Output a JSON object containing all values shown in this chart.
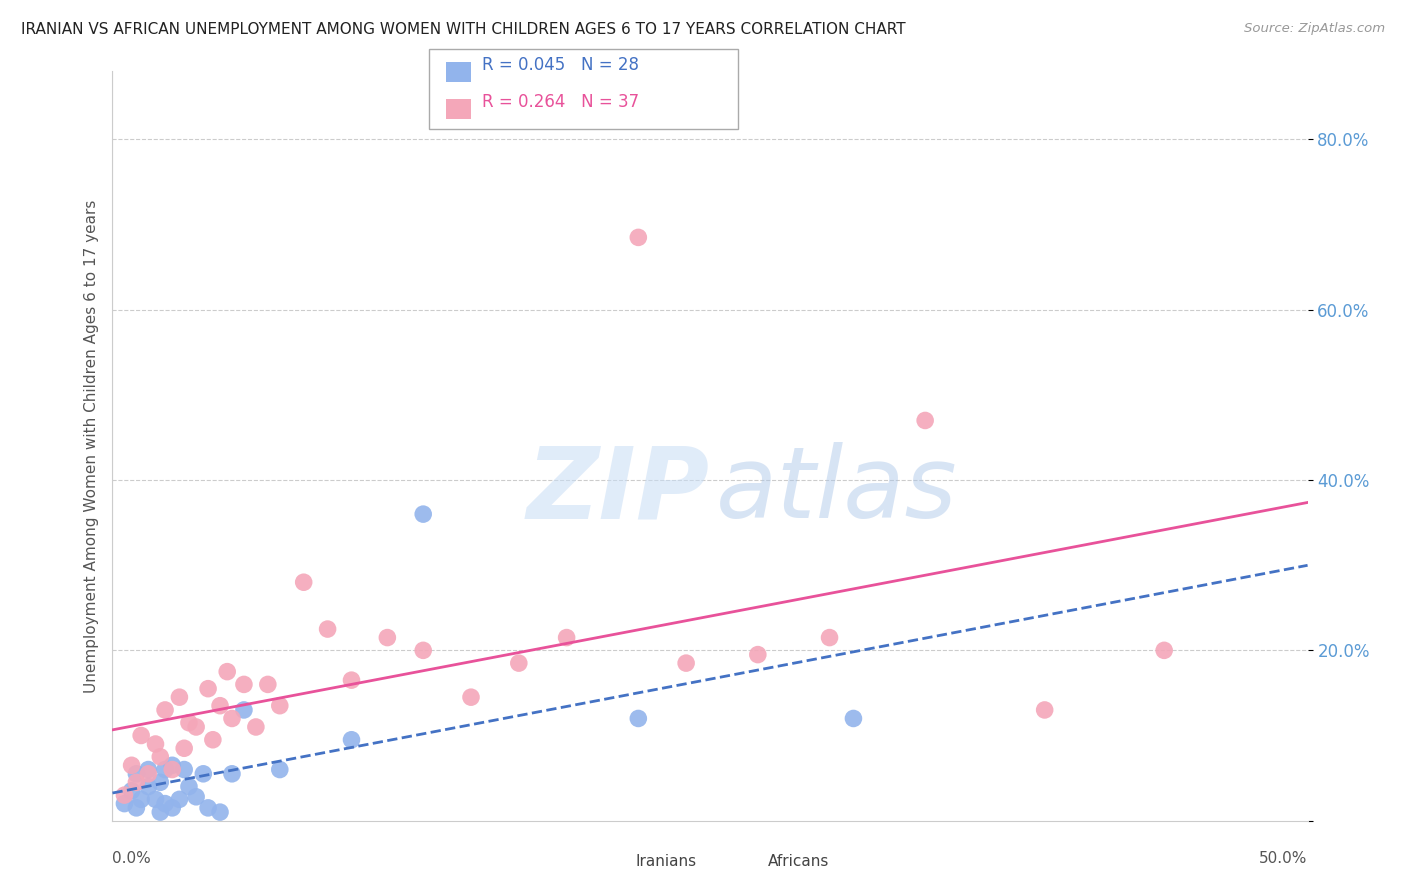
{
  "title": "IRANIAN VS AFRICAN UNEMPLOYMENT AMONG WOMEN WITH CHILDREN AGES 6 TO 17 YEARS CORRELATION CHART",
  "source": "Source: ZipAtlas.com",
  "ylabel": "Unemployment Among Women with Children Ages 6 to 17 years",
  "xlim": [
    0.0,
    0.5
  ],
  "ylim": [
    0.0,
    0.88
  ],
  "yticks": [
    0.0,
    0.2,
    0.4,
    0.6,
    0.8
  ],
  "ytick_labels": [
    "",
    "20.0%",
    "40.0%",
    "60.0%",
    "80.0%"
  ],
  "xtick_left_label": "0.0%",
  "xtick_right_label": "50.0%",
  "legend_R_iranian": "R = 0.045",
  "legend_N_iranian": "N = 28",
  "legend_R_african": "R = 0.264",
  "legend_N_african": "N = 37",
  "iranian_color": "#92b4ec",
  "african_color": "#f4a7b9",
  "trend_iranian_color": "#4472c4",
  "trend_african_color": "#e8529a",
  "watermark_zip_color": "#c8ddf5",
  "watermark_atlas_color": "#a8c4e8",
  "iranian_x": [
    0.005,
    0.008,
    0.01,
    0.01,
    0.012,
    0.015,
    0.015,
    0.018,
    0.02,
    0.02,
    0.022,
    0.022,
    0.025,
    0.025,
    0.028,
    0.03,
    0.032,
    0.035,
    0.038,
    0.04,
    0.045,
    0.05,
    0.055,
    0.07,
    0.1,
    0.13,
    0.22,
    0.31
  ],
  "iranian_y": [
    0.02,
    0.035,
    0.015,
    0.055,
    0.025,
    0.06,
    0.04,
    0.025,
    0.01,
    0.045,
    0.02,
    0.06,
    0.065,
    0.015,
    0.025,
    0.06,
    0.04,
    0.028,
    0.055,
    0.015,
    0.01,
    0.055,
    0.13,
    0.06,
    0.095,
    0.36,
    0.12,
    0.12
  ],
  "african_x": [
    0.005,
    0.008,
    0.01,
    0.012,
    0.015,
    0.018,
    0.02,
    0.022,
    0.025,
    0.028,
    0.03,
    0.032,
    0.035,
    0.04,
    0.042,
    0.045,
    0.048,
    0.05,
    0.055,
    0.06,
    0.065,
    0.07,
    0.08,
    0.09,
    0.1,
    0.115,
    0.13,
    0.15,
    0.17,
    0.19,
    0.22,
    0.24,
    0.27,
    0.3,
    0.34,
    0.39,
    0.44
  ],
  "african_y": [
    0.03,
    0.065,
    0.045,
    0.1,
    0.055,
    0.09,
    0.075,
    0.13,
    0.06,
    0.145,
    0.085,
    0.115,
    0.11,
    0.155,
    0.095,
    0.135,
    0.175,
    0.12,
    0.16,
    0.11,
    0.16,
    0.135,
    0.28,
    0.225,
    0.165,
    0.215,
    0.2,
    0.145,
    0.185,
    0.215,
    0.685,
    0.185,
    0.195,
    0.215,
    0.47,
    0.13,
    0.2
  ]
}
